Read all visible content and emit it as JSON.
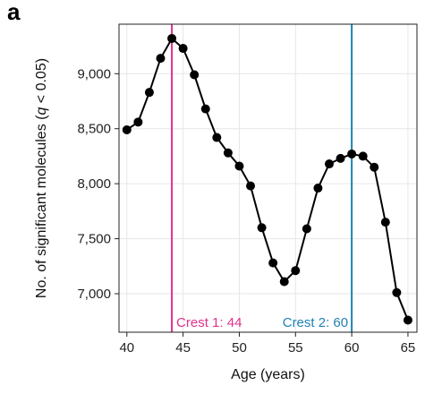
{
  "panel_label": "a",
  "chart_data": {
    "type": "line",
    "xlabel": "Age (years)",
    "ylabel_prefix": "No. of significant molecules (",
    "ylabel_q": "q",
    "ylabel_suffix": " < 0.05)",
    "xlim": [
      39.3,
      65.8
    ],
    "ylim": [
      6650,
      9450
    ],
    "xticks": [
      40,
      45,
      50,
      55,
      60,
      65
    ],
    "yticks": [
      7000,
      7500,
      8000,
      8500,
      9000
    ],
    "ytick_labels": [
      "7,000",
      "7,500",
      "8,000",
      "8,500",
      "9,000"
    ],
    "grid": true,
    "line_color": "#000000",
    "point_color": "#000000",
    "x": [
      40,
      41,
      42,
      43,
      44,
      45,
      46,
      47,
      48,
      49,
      50,
      51,
      52,
      53,
      54,
      55,
      56,
      57,
      58,
      59,
      60,
      61,
      62,
      63,
      64,
      65
    ],
    "y": [
      8490,
      8560,
      8830,
      9140,
      9320,
      9230,
      8990,
      8680,
      8420,
      8280,
      8160,
      7980,
      7600,
      7280,
      7110,
      7210,
      7590,
      7960,
      8180,
      8230,
      8270,
      8250,
      8150,
      7650,
      7010,
      6760
    ],
    "crests": [
      {
        "label": "Crest 1: 44",
        "x": 44,
        "color": "#e0338c"
      },
      {
        "label": "Crest 2: 60",
        "x": 60,
        "color": "#1f82b4"
      }
    ]
  }
}
